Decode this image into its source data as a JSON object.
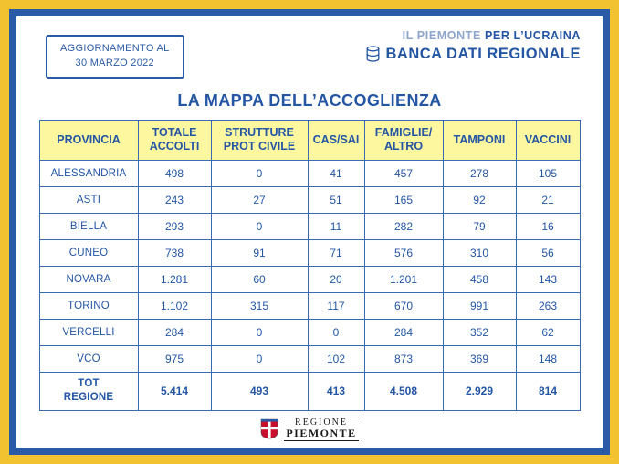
{
  "update_box": {
    "line1": "AGGIORNAMENTO AL",
    "line2": "30 MARZO 2022"
  },
  "brand": {
    "campaign_light": "IL PIEMONTE ",
    "campaign_bold": "PER L’UCRAINA",
    "name": "BANCA DATI REGIONALE"
  },
  "title": "LA MAPPA DELL’ACCOGLIENZA",
  "colors": {
    "frame_yellow": "#F2C230",
    "frame_blue": "#2B5BA7",
    "text_blue": "#2456A4",
    "header_yellow": "#FDF79F",
    "logo_red": "#C8102E"
  },
  "chart_data": {
    "type": "table",
    "title": "LA MAPPA DELL’ACCOGLIENZA",
    "columns": [
      "PROVINCIA",
      "TOTALE\nACCOLTI",
      "STRUTTURE\nPROT CIVILE",
      "CAS/SAI",
      "FAMIGLIE/\nALTRO",
      "TAMPONI",
      "VACCINI"
    ],
    "rows": [
      [
        "ALESSANDRIA",
        "498",
        "0",
        "41",
        "457",
        "278",
        "105"
      ],
      [
        "ASTI",
        "243",
        "27",
        "51",
        "165",
        "92",
        "21"
      ],
      [
        "BIELLA",
        "293",
        "0",
        "11",
        "282",
        "79",
        "16"
      ],
      [
        "CUNEO",
        "738",
        "91",
        "71",
        "576",
        "310",
        "56"
      ],
      [
        "NOVARA",
        "1.281",
        "60",
        "20",
        "1.201",
        "458",
        "143"
      ],
      [
        "TORINO",
        "1.102",
        "315",
        "117",
        "670",
        "991",
        "263"
      ],
      [
        "VERCELLI",
        "284",
        "0",
        "0",
        "284",
        "352",
        "62"
      ],
      [
        "VCO",
        "975",
        "0",
        "102",
        "873",
        "369",
        "148"
      ]
    ],
    "total_row": [
      "TOT\nREGIONE",
      "5.414",
      "493",
      "413",
      "4.508",
      "2.929",
      "814"
    ]
  },
  "footer": {
    "region_line1": "REGIONE",
    "region_line2": "PIEMONTE"
  }
}
